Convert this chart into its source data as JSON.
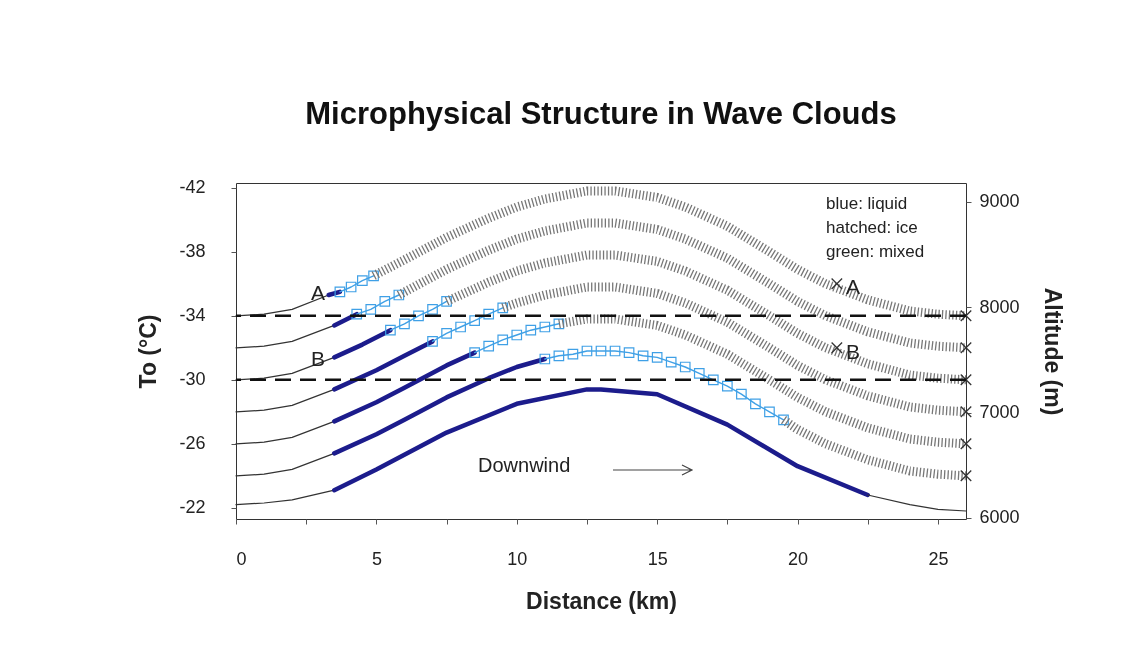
{
  "chart_data": {
    "type": "line",
    "title": "Microphysical Structure in Wave Clouds",
    "xlabel": "Distance (km)",
    "ylabel": "To (°C)",
    "y2label": "Altitude (m)",
    "xlim": [
      0,
      26
    ],
    "xticks": [
      0,
      {
        "value": 2.5,
        "label": null
      },
      5,
      {
        "value": 7.5,
        "label": null
      },
      10,
      {
        "value": 12.5,
        "label": null
      },
      15,
      {
        "value": 17.5,
        "label": null
      },
      20,
      {
        "value": 22.5,
        "label": null
      },
      25
    ],
    "ylim": [
      -21.3,
      -42.3
    ],
    "yticks": [
      -42,
      -38,
      -34,
      -30,
      -26,
      -22
    ],
    "y2lim": [
      5990,
      9180
    ],
    "y2ticks": [
      6000,
      7000,
      8000,
      9000
    ],
    "ref_lines": [
      {
        "axis": "y",
        "value": -34,
        "color": "#111111",
        "line_style": "dashed"
      },
      {
        "axis": "y",
        "value": -30,
        "color": "#111111",
        "line_style": "dashed"
      }
    ],
    "annotations": [
      "blue: liquid",
      "hatched: ice",
      "green: mixed",
      "A",
      "B",
      "A",
      "B",
      "Downwind"
    ],
    "series": [
      {
        "type": "line",
        "color": "#333333",
        "line_style": "solid",
        "x": [
          0,
          1,
          2,
          3.5
        ],
        "values": [
          -22.2,
          -22.3,
          -22.5,
          -23.1
        ]
      },
      {
        "type": "line",
        "color": "#1c1c8c",
        "x": [
          3.5,
          5,
          7.5,
          10,
          12.5,
          13,
          15,
          17.5,
          20,
          22.5
        ],
        "values": [
          -23.1,
          -24.4,
          -26.7,
          -28.5,
          -29.4,
          -29.4,
          -29.1,
          -27.2,
          -24.6,
          -22.8
        ]
      },
      {
        "type": "line",
        "color": "#333333",
        "line_style": "solid",
        "x": [
          22.5,
          24,
          25,
          26
        ],
        "values": [
          -22.8,
          -22.2,
          -21.9,
          -21.8
        ]
      },
      {
        "type": "line",
        "color": "#333333",
        "line_style": "solid",
        "x": [
          0,
          1,
          2,
          3.5
        ],
        "values": [
          -24,
          -24.1,
          -24.4,
          -25.4
        ]
      },
      {
        "type": "line",
        "color": "#1c1c8c",
        "x": [
          3.5,
          5,
          6,
          7.5,
          9,
          10,
          11
        ],
        "values": [
          -25.4,
          -26.6,
          -27.5,
          -28.9,
          -30.1,
          -30.8,
          -31.3
        ]
      },
      {
        "type": "line",
        "color": "#3fa0e6",
        "marker": "square",
        "x": [
          11,
          11.5,
          12,
          12.5,
          13,
          13.5,
          14,
          14.5,
          15,
          15.5,
          16,
          16.5,
          17,
          17.5,
          18,
          18.5,
          19,
          19.5
        ],
        "values": [
          -31.3,
          -31.5,
          -31.6,
          -31.8,
          -31.8,
          -31.8,
          -31.7,
          -31.5,
          -31.4,
          -31.1,
          -30.8,
          -30.4,
          -30.0,
          -29.6,
          -29.1,
          -28.5,
          -28.0,
          -27.5
        ]
      },
      {
        "type": "line",
        "color": "#777777",
        "line_style": "dotted",
        "x": [
          19.5,
          20,
          21,
          22.5,
          24,
          25,
          26
        ],
        "values": [
          -27.5,
          -26.9,
          -26.0,
          -25.0,
          -24.3,
          -24.1,
          -24
        ]
      },
      {
        "type": "line",
        "color": "#333333",
        "line_style": "solid",
        "x": [
          0,
          1,
          2,
          3.5
        ],
        "values": [
          -26,
          -26.1,
          -26.4,
          -27.4
        ]
      },
      {
        "type": "line",
        "color": "#1c1c8c",
        "x": [
          3.5,
          5,
          6,
          7.5,
          8.5
        ],
        "values": [
          -27.4,
          -28.6,
          -29.5,
          -30.9,
          -31.7
        ]
      },
      {
        "type": "line",
        "color": "#3fa0e6",
        "marker": "square",
        "x": [
          8.5,
          9,
          9.5,
          10,
          10.5,
          11,
          11.5
        ],
        "values": [
          -31.7,
          -32.1,
          -32.5,
          -32.8,
          -33.1,
          -33.3,
          -33.5
        ]
      },
      {
        "type": "line",
        "color": "#777777",
        "line_style": "dotted",
        "x": [
          11.5,
          12.5,
          13.5,
          15,
          16,
          17.5,
          19,
          20,
          21,
          22.5,
          24,
          25,
          26
        ],
        "values": [
          -33.5,
          -33.8,
          -33.8,
          -33.4,
          -32.8,
          -31.6,
          -30.0,
          -28.9,
          -28.0,
          -27.0,
          -26.3,
          -26.1,
          -26
        ]
      },
      {
        "type": "line",
        "color": "#333333",
        "line_style": "solid",
        "x": [
          0,
          1,
          2,
          3.5
        ],
        "values": [
          -28,
          -28.1,
          -28.4,
          -29.4
        ]
      },
      {
        "type": "line",
        "color": "#1c1c8c",
        "x": [
          3.5,
          5,
          6,
          7
        ],
        "values": [
          -29.4,
          -30.6,
          -31.5,
          -32.4
        ]
      },
      {
        "type": "line",
        "color": "#3fa0e6",
        "marker": "square",
        "x": [
          7,
          7.5,
          8,
          8.5,
          9,
          9.5
        ],
        "values": [
          -32.4,
          -32.9,
          -33.3,
          -33.7,
          -34.1,
          -34.5
        ]
      },
      {
        "type": "line",
        "color": "#777777",
        "line_style": "dotted",
        "x": [
          9.5,
          10,
          11,
          12.5,
          13.5,
          15,
          16,
          17.5,
          19,
          20,
          21,
          22.5,
          24,
          25,
          26
        ],
        "values": [
          -34.5,
          -34.8,
          -35.3,
          -35.8,
          -35.8,
          -35.4,
          -34.8,
          -33.6,
          -32.0,
          -30.9,
          -30.0,
          -29.0,
          -28.3,
          -28.1,
          -28
        ]
      },
      {
        "type": "line",
        "color": "#333333",
        "line_style": "solid",
        "x": [
          0,
          1,
          2,
          3.5
        ],
        "values": [
          -30,
          -30.1,
          -30.4,
          -31.4
        ]
      },
      {
        "type": "line",
        "color": "#1c1c8c",
        "x": [
          3.5,
          4.5,
          5.5
        ],
        "values": [
          -31.4,
          -32.2,
          -33.1
        ]
      },
      {
        "type": "line",
        "color": "#3fa0e6",
        "marker": "square",
        "x": [
          5.5,
          6,
          6.5,
          7,
          7.5
        ],
        "values": [
          -33.1,
          -33.5,
          -34.0,
          -34.4,
          -34.9
        ]
      },
      {
        "type": "line",
        "color": "#777777",
        "line_style": "dotted",
        "x": [
          7.5,
          9,
          10,
          11,
          12.5,
          13.5,
          15,
          16,
          17.5,
          19,
          20,
          21,
          22.5,
          24,
          25,
          26
        ],
        "values": [
          -34.9,
          -36.1,
          -36.8,
          -37.3,
          -37.8,
          -37.8,
          -37.4,
          -36.8,
          -35.6,
          -34.0,
          -32.9,
          -32.0,
          -31.0,
          -30.3,
          -30.1,
          -30
        ]
      },
      {
        "type": "line",
        "color": "#333333",
        "line_style": "solid",
        "x": [
          0,
          1,
          2,
          3.5
        ],
        "values": [
          -32,
          -32.1,
          -32.4,
          -33.4
        ]
      },
      {
        "type": "line",
        "color": "#1c1c8c",
        "x": [
          3.5,
          4.3
        ],
        "values": [
          -33.4,
          -34.1
        ]
      },
      {
        "type": "line",
        "color": "#3fa0e6",
        "marker": "square",
        "x": [
          4.3,
          4.8,
          5.3,
          5.8
        ],
        "values": [
          -34.1,
          -34.4,
          -34.9,
          -35.3
        ]
      },
      {
        "type": "line",
        "color": "#777777",
        "line_style": "dotted",
        "x": [
          5.8,
          7.5,
          9,
          10,
          11,
          12.5,
          13.5,
          15,
          16,
          17.5,
          19,
          20,
          21,
          22.5,
          24,
          25,
          26
        ],
        "values": [
          -35.3,
          -36.9,
          -38.1,
          -38.8,
          -39.3,
          -39.8,
          -39.8,
          -39.4,
          -38.8,
          -37.6,
          -36.0,
          -34.9,
          -34.0,
          -33.0,
          -32.3,
          -32.1,
          -32
        ]
      },
      {
        "type": "line",
        "color": "#333333",
        "line_style": "solid",
        "x": [
          0,
          1,
          2,
          3.3
        ],
        "values": [
          -34,
          -34.1,
          -34.4,
          -35.3
        ]
      },
      {
        "type": "line",
        "color": "#1c1c8c",
        "x": [
          3.3,
          3.7
        ],
        "values": [
          -35.3,
          -35.5
        ]
      },
      {
        "type": "line",
        "color": "#3fa0e6",
        "marker": "square",
        "x": [
          3.7,
          4.1,
          4.5,
          4.9
        ],
        "values": [
          -35.5,
          -35.8,
          -36.2,
          -36.5
        ]
      },
      {
        "type": "line",
        "color": "#777777",
        "line_style": "dotted",
        "x": [
          4.9,
          6,
          7.5,
          9,
          10,
          11,
          12.5,
          13.5,
          15,
          16,
          17.5,
          19,
          20,
          21,
          22.5,
          24,
          25,
          26
        ],
        "values": [
          -36.5,
          -37.5,
          -38.9,
          -40.1,
          -40.8,
          -41.3,
          -41.8,
          -41.8,
          -41.4,
          -40.8,
          -39.6,
          -38.0,
          -36.9,
          -36.0,
          -35.0,
          -34.3,
          -34.1,
          -34
        ]
      },
      {
        "type": "scatter",
        "color": "#333333",
        "marker": "cross",
        "x": [
          26,
          26,
          26,
          26,
          26,
          26,
          21.4,
          21.4
        ],
        "values": [
          -24,
          -26,
          -28,
          -30,
          -32,
          -34,
          -36.0,
          -32.0
        ]
      }
    ]
  }
}
